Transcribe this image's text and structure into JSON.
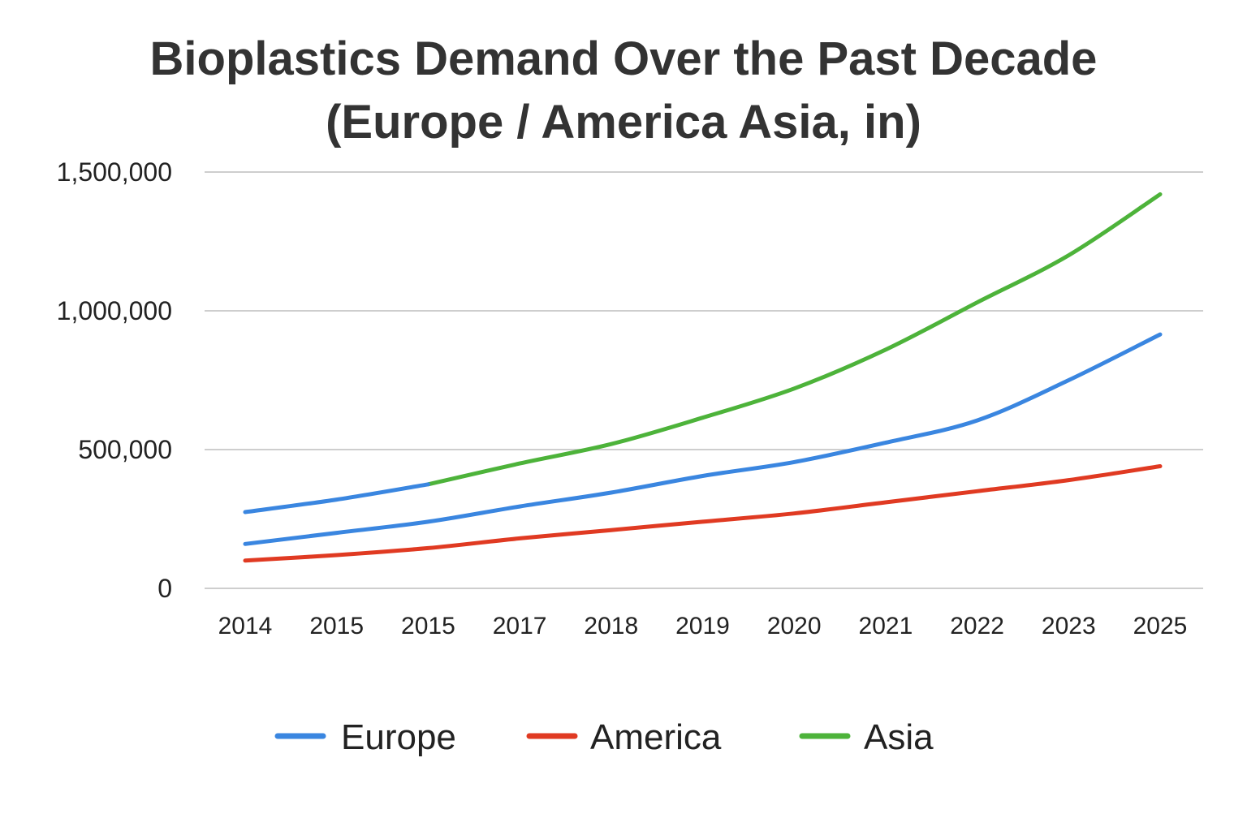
{
  "chart_data": {
    "type": "line",
    "title_lines": [
      "Bioplastics Demand Over the Past Decade",
      "(Europe / America  Asia, in)"
    ],
    "categories": [
      "2014",
      "2015",
      "2015",
      "2017",
      "2018",
      "2019",
      "2020",
      "2021",
      "2022",
      "2023",
      "2025"
    ],
    "ylim": [
      0,
      1500000
    ],
    "y_ticks": [
      0,
      500000,
      1000000,
      1500000
    ],
    "y_tick_labels": [
      "0",
      "500,000",
      "1,000,000",
      "1,500,000"
    ],
    "grid": true,
    "legend_position": "bottom",
    "series": [
      {
        "name": "Europe",
        "color": "#3a86e0",
        "segments": [
          {
            "x_index": [
              0,
              1,
              2
            ],
            "values": [
              275000,
              320000,
              375000
            ]
          },
          {
            "x_index": [
              0,
              1,
              2,
              3,
              4,
              5,
              6,
              7,
              8,
              9,
              10
            ],
            "values": [
              160000,
              200000,
              240000,
              295000,
              345000,
              405000,
              455000,
              525000,
              605000,
              750000,
              915000
            ]
          }
        ]
      },
      {
        "name": "America",
        "color": "#e03a22",
        "segments": [
          {
            "x_index": [
              0,
              1,
              2,
              3,
              4,
              5,
              6,
              7,
              8,
              9,
              10
            ],
            "values": [
              100000,
              120000,
              145000,
              180000,
              210000,
              240000,
              270000,
              310000,
              350000,
              390000,
              440000
            ]
          }
        ]
      },
      {
        "name": "Asia",
        "color": "#4db33a",
        "segments": [
          {
            "x_index": [
              2,
              3,
              4,
              5,
              6,
              7,
              8,
              9,
              10
            ],
            "values": [
              375000,
              450000,
              520000,
              615000,
              720000,
              860000,
              1030000,
              1200000,
              1420000
            ]
          }
        ]
      }
    ]
  }
}
